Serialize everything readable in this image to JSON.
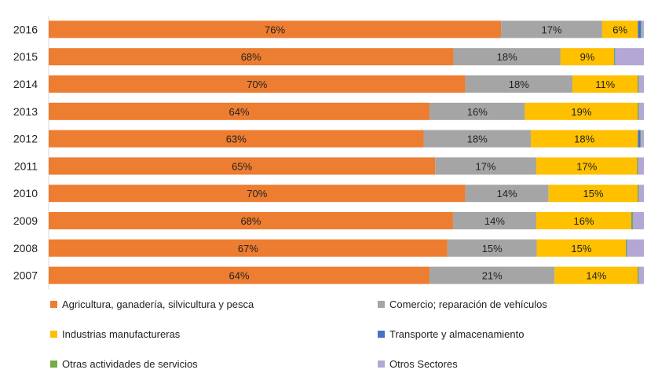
{
  "chart_data": {
    "type": "bar",
    "orientation": "horizontal",
    "stacked": "percent",
    "categories": [
      "2016",
      "2015",
      "2014",
      "2013",
      "2012",
      "2011",
      "2010",
      "2009",
      "2008",
      "2007"
    ],
    "series": [
      {
        "name": "Agricultura, ganadería,  silvicultura y pesca",
        "color": "#ED7D31",
        "values": [
          76,
          68,
          70,
          64,
          63,
          65,
          70,
          68,
          67,
          64
        ],
        "labels": [
          "76%",
          "68%",
          "70%",
          "64%",
          "63%",
          "65%",
          "70%",
          "68%",
          "67%",
          "64%"
        ]
      },
      {
        "name": "Comercio; reparación de vehículos",
        "color": "#A5A5A5",
        "values": [
          17,
          18,
          18,
          16,
          18,
          17,
          14,
          14,
          15,
          21
        ],
        "labels": [
          "17%",
          "18%",
          "18%",
          "16%",
          "18%",
          "17%",
          "14%",
          "14%",
          "15%",
          "21%"
        ]
      },
      {
        "name": "Industrias manufactureras",
        "color": "#FFC000",
        "values": [
          6,
          9,
          11,
          19,
          18,
          17,
          15,
          16,
          15,
          14
        ],
        "labels": [
          "6%",
          "9%",
          "11%",
          "19%",
          "18%",
          "17%",
          "15%",
          "16%",
          "15%",
          "14%"
        ]
      },
      {
        "name": "Transporte y almacenamiento",
        "color": "#4472C4",
        "values": [
          0.5,
          0.1,
          0.1,
          0.1,
          0.4,
          0.1,
          0.1,
          0.1,
          0.1,
          0.1
        ],
        "labels": [
          "",
          "",
          "",
          "",
          "",
          "",
          "",
          "",
          "",
          ""
        ]
      },
      {
        "name": "Otras actividades de servicios",
        "color": "#70AD47",
        "values": [
          0.1,
          0.1,
          0.1,
          0.1,
          0.1,
          0.1,
          0.1,
          0.2,
          0.1,
          0.1
        ],
        "labels": [
          "",
          "",
          "",
          "",
          "",
          "",
          "",
          "",
          "",
          ""
        ]
      },
      {
        "name": "Otros Sectores",
        "color": "#B4A7D6",
        "values": [
          0.4,
          4.8,
          0.8,
          0.8,
          0.5,
          0.9,
          0.8,
          1.8,
          2.8,
          0.8
        ],
        "labels": [
          "",
          "",
          "",
          "",
          "",
          "",
          "",
          "",
          "",
          ""
        ]
      }
    ],
    "xlim": [
      0,
      100
    ],
    "grid": false,
    "legend": "bottom"
  }
}
